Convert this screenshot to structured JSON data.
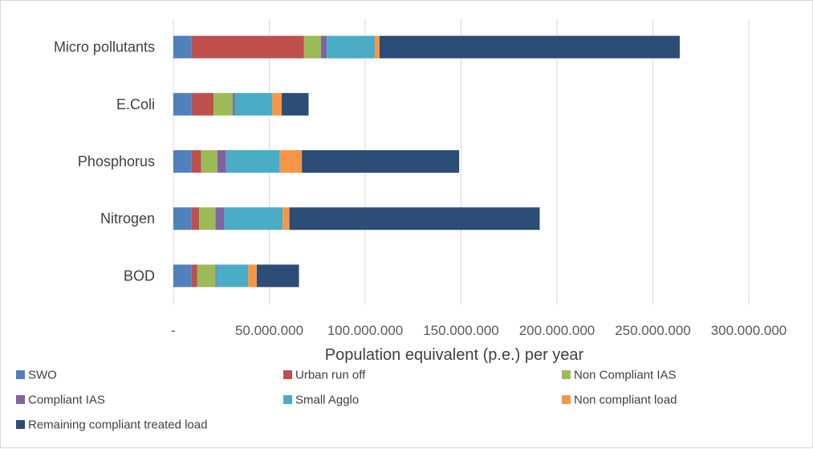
{
  "chart_data": {
    "type": "bar",
    "orientation": "horizontal",
    "stacked": true,
    "title": "",
    "xlabel": "Population equivalent (p.e.) per year",
    "ylabel": "",
    "xlim": [
      0,
      300000000
    ],
    "x_ticks": [
      0,
      50000000,
      100000000,
      150000000,
      200000000,
      250000000,
      300000000
    ],
    "x_tick_labels": [
      "-",
      "50.000.000",
      "100.000.000",
      "150.000.000",
      "200.000.000",
      "250.000.000",
      "300.000.000"
    ],
    "grid": true,
    "legend_position": "bottom",
    "categories": [
      "BOD",
      "Nitrogen",
      "Phosphorus",
      "E.Coli",
      "Micro pollutants"
    ],
    "series": [
      {
        "name": "SWO",
        "color": "#4f81bd",
        "values": [
          9500000,
          9500000,
          9500000,
          9500000,
          9500000
        ]
      },
      {
        "name": "Urban run off",
        "color": "#c0504d",
        "values": [
          3000000,
          4000000,
          5000000,
          11500000,
          58500000
        ]
      },
      {
        "name": "Non Compliant IAS",
        "color": "#9bbb59",
        "values": [
          9500000,
          8500000,
          8500000,
          10000000,
          9000000
        ]
      },
      {
        "name": "Compliant IAS",
        "color": "#8064a2",
        "values": [
          500000,
          4500000,
          4500000,
          1000000,
          3000000
        ]
      },
      {
        "name": "Small Agglo",
        "color": "#4bacc6",
        "values": [
          16500000,
          30500000,
          28000000,
          19500000,
          25000000
        ]
      },
      {
        "name": "Non compliant load",
        "color": "#f79646",
        "values": [
          4500000,
          3500000,
          11500000,
          5000000,
          2500000
        ]
      },
      {
        "name": "Remaining compliant treated load",
        "color": "#2c4d75",
        "values": [
          22000000,
          130500000,
          82000000,
          14000000,
          156500000
        ]
      }
    ]
  }
}
